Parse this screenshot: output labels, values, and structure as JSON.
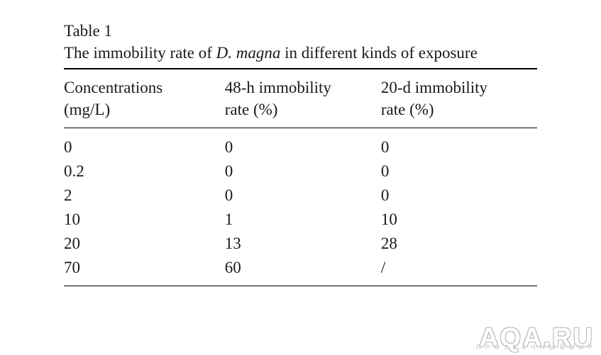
{
  "background_color": "#ffffff",
  "text_color": "#1a1a1a",
  "font_family": "Palatino Linotype",
  "caption": {
    "label": "Table 1",
    "title_before_species": "The immobility rate of ",
    "species": "D. magna",
    "title_after_species": " in different kinds of exposure",
    "fontsize": 23
  },
  "table": {
    "type": "table",
    "border_color": "#000000",
    "top_rule_width": 2,
    "mid_rule_width": 1.5,
    "bottom_rule_width": 1.5,
    "fontsize": 23,
    "columns": [
      {
        "line1": "Concentrations",
        "line2": "(mg/L)",
        "width_pct": 34,
        "align": "left"
      },
      {
        "line1": "48-h immobility",
        "line2": "rate (%)",
        "width_pct": 33,
        "align": "left"
      },
      {
        "line1": "20-d immobility",
        "line2": "rate (%)",
        "width_pct": 33,
        "align": "left"
      }
    ],
    "rows": [
      [
        "0",
        "0",
        "0"
      ],
      [
        "0.2",
        "0",
        "0"
      ],
      [
        "2",
        "0",
        "0"
      ],
      [
        "10",
        "1",
        "10"
      ],
      [
        "20",
        "13",
        "28"
      ],
      [
        "70",
        "60",
        "/"
      ]
    ]
  },
  "watermark": {
    "main": "AQA.RU",
    "sub": "П Р О З Р А Ч Н Ы Й   М И Р",
    "main_fontsize": 38,
    "sub_fontsize": 9,
    "outline_color": "#b9b9b9",
    "fill_color": "#ffffff"
  }
}
